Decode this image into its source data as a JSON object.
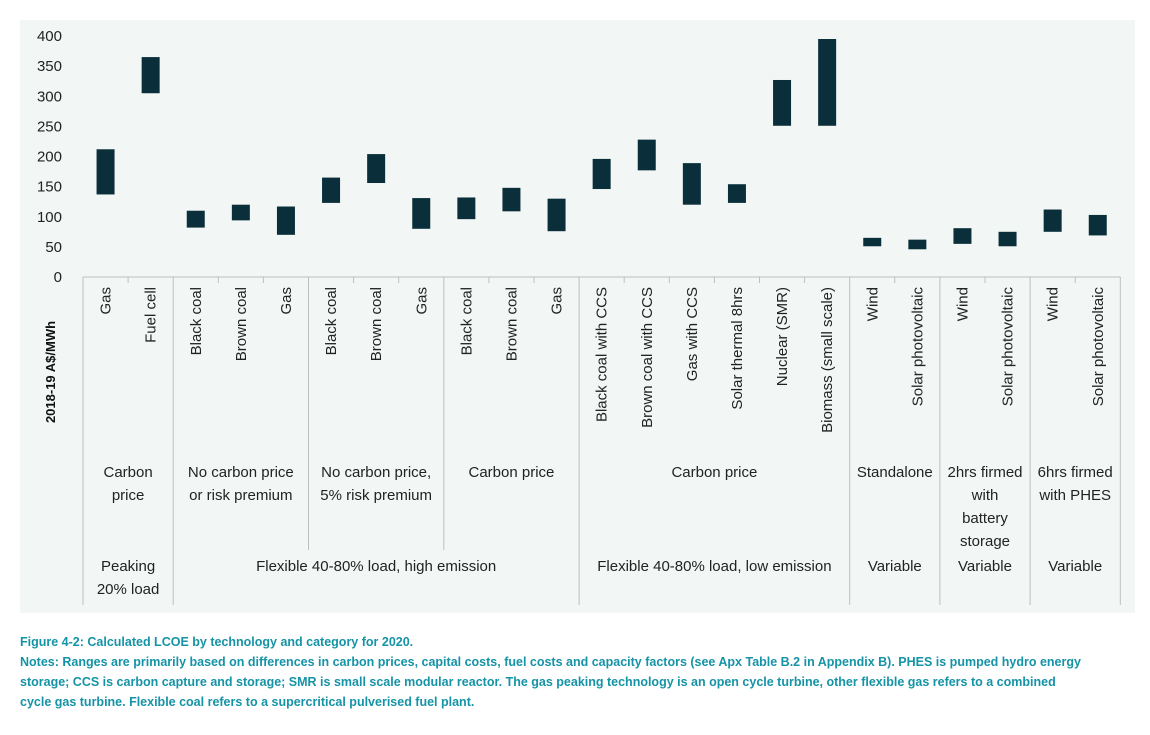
{
  "chart_data": {
    "type": "bar",
    "subtype": "floating-range",
    "ylabel": "2018-19 A$/MWh",
    "ylim": [
      0,
      400
    ],
    "yticks": [
      "0",
      "50",
      "100",
      "150",
      "200",
      "250",
      "300",
      "350",
      "400"
    ],
    "bar_color": "#0a2f3a",
    "grid": false,
    "categories": [
      {
        "label": "Gas",
        "low": 137,
        "high": 212
      },
      {
        "label": "Fuel cell",
        "low": 305,
        "high": 365
      },
      {
        "label": "Black coal",
        "low": 82,
        "high": 110
      },
      {
        "label": "Brown coal",
        "low": 94,
        "high": 120
      },
      {
        "label": "Gas",
        "low": 70,
        "high": 117
      },
      {
        "label": "Black coal",
        "low": 123,
        "high": 165
      },
      {
        "label": "Brown coal",
        "low": 156,
        "high": 204
      },
      {
        "label": "Gas",
        "low": 80,
        "high": 131
      },
      {
        "label": "Black coal",
        "low": 96,
        "high": 132
      },
      {
        "label": "Brown coal",
        "low": 109,
        "high": 148
      },
      {
        "label": "Gas",
        "low": 76,
        "high": 130
      },
      {
        "label": "Black coal with CCS",
        "low": 146,
        "high": 196
      },
      {
        "label": "Brown coal with CCS",
        "low": 177,
        "high": 228
      },
      {
        "label": "Gas with CCS",
        "low": 120,
        "high": 189
      },
      {
        "label": "Solar thermal 8hrs",
        "low": 123,
        "high": 154
      },
      {
        "label": "Nuclear (SMR)",
        "low": 251,
        "high": 327
      },
      {
        "label": "Biomass (small scale)",
        "low": 251,
        "high": 395
      },
      {
        "label": "Wind",
        "low": 51,
        "high": 65
      },
      {
        "label": "Solar photovoltaic",
        "low": 46,
        "high": 62
      },
      {
        "label": "Wind",
        "low": 55,
        "high": 81
      },
      {
        "label": "Solar photovoltaic",
        "low": 51,
        "high": 75
      },
      {
        "label": "Wind",
        "low": 75,
        "high": 112
      },
      {
        "label": "Solar photovoltaic",
        "low": 69,
        "high": 103
      }
    ],
    "groups_level1": [
      {
        "lines": [
          "Carbon",
          "price"
        ],
        "start": 0,
        "end": 1
      },
      {
        "lines": [
          "No carbon price",
          "or risk premium"
        ],
        "start": 2,
        "end": 4
      },
      {
        "lines": [
          "No carbon price,",
          "5% risk premium"
        ],
        "start": 5,
        "end": 7
      },
      {
        "lines": [
          "Carbon price"
        ],
        "start": 8,
        "end": 10
      },
      {
        "lines": [
          "Carbon price"
        ],
        "start": 11,
        "end": 16
      },
      {
        "lines": [
          "Standalone"
        ],
        "start": 17,
        "end": 18
      },
      {
        "lines": [
          "2hrs firmed",
          "with",
          "battery",
          "storage"
        ],
        "start": 19,
        "end": 20
      },
      {
        "lines": [
          "6hrs firmed",
          "with PHES"
        ],
        "start": 21,
        "end": 22
      }
    ],
    "groups_level2": [
      {
        "lines": [
          "Peaking",
          "20% load"
        ],
        "start": 0,
        "end": 1
      },
      {
        "lines": [
          "Flexible 40-80% load, high emission"
        ],
        "start": 2,
        "end": 10
      },
      {
        "lines": [
          "Flexible 40-80% load, low emission"
        ],
        "start": 11,
        "end": 16
      },
      {
        "lines": [
          "Variable"
        ],
        "start": 17,
        "end": 18
      },
      {
        "lines": [
          "Variable"
        ],
        "start": 19,
        "end": 20
      },
      {
        "lines": [
          "Variable"
        ],
        "start": 21,
        "end": 22
      }
    ]
  },
  "caption": {
    "title": "Figure 4-2: Calculated LCOE by technology and category for 2020.",
    "notes": [
      "Notes: Ranges are primarily based on differences in carbon prices, capital costs, fuel costs and capacity factors (see Apx Table B.2 in Appendix B). PHES is pumped hydro energy",
      "storage; CCS is carbon capture and storage; SMR is small scale modular reactor. The gas peaking technology is an open cycle turbine, other flexible gas refers to a combined",
      "cycle gas turbine. Flexible coal refers to a supercritical pulverised fuel plant."
    ]
  }
}
